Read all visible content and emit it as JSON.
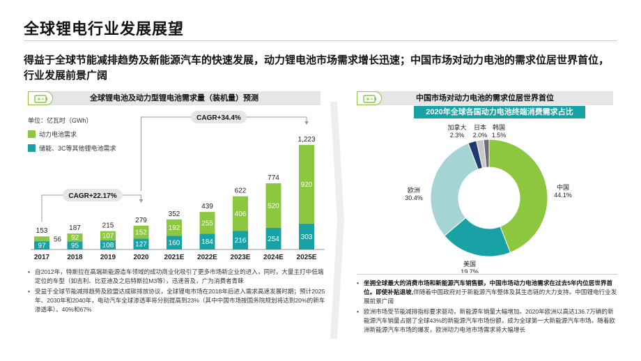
{
  "page": {
    "title": "全球锂电行业发展展望",
    "headline": "得益于全球节能减排趋势及新能源汽车的快速发展，动力锂电池市场需求增长迅速；中国市场对动力电池的需求位居世界首位，行业发展前景广阔"
  },
  "left_panel": {
    "title": "全球锂电池及动力型锂电池需求量（装机量）预测",
    "unit": "单位：亿瓦时（GWh）",
    "legend": [
      "动力电池需求",
      "储能、3C等其他锂电池需求"
    ],
    "bullets": [
      "自2012年，特斯拉在高端新能源造车领域的成功商业化吸引了更多市场新企业的进入，同时，大量主打中低端定位的车型（如吉利、比亚迪及之后特斯拉M3等），迅速普及，广为消费者青睐",
      "受益于全球节能减排趋势及欧盟达成碳排放协议，全球锂电市场在2018年后进入需求高速发展时期；预计2025年、2030年和2040年，电动汽车全球渗透率将分别提高到23%（其中中国市场按国务院规划将达到20%的新车渗透率）、40%和67%"
    ]
  },
  "right_panel": {
    "title": "中国市场对动力电池的需求位居世界首位",
    "subtitle": "2020年全球各国动力电池终端消费需求占比",
    "bullets": [
      {
        "bold": "坐拥全球最大的消费市场和新能源汽车销售额，中国市场动力电池需求在过去5年内位居世界首位。即使补贴退坡,",
        "text": "伴随着中国政府对于新能源汽车整体及其生态链的大力支持。中国锂电行业发展前景广阔"
      },
      {
        "bold": "",
        "text": "欧洲市场受节能减排指标要求驱动，新能源车销量大幅增加。2020年欧洲以高达136.7万辆的新能源汽车销量占据了全球43%的新能源汽车市场份额，成为全球第一大新能源汽车市场。随着欧洲新能源汽车市场的爆发，欧洲动力电池市场需求将大幅增长"
      }
    ]
  },
  "colors": {
    "green": "#8dc63f",
    "teal": "#19a2a5",
    "light_teal": "#a6d5d6",
    "navy": "#1f3a6e",
    "grey": "#c8c8c8",
    "dark_grey": "#6d6e71"
  },
  "chart_data": [
    {
      "type": "bar",
      "stacked": true,
      "categories": [
        "2017",
        "2018",
        "2019",
        "2020",
        "2021E",
        "2022E",
        "2023E",
        "2024E",
        "2025E"
      ],
      "series": [
        {
          "name": "储能、3C等其他锂电池需求",
          "values": [
            97,
            95,
            108,
            127,
            160,
            184,
            216,
            254,
            303
          ],
          "color": "#19a2a5"
        },
        {
          "name": "动力电池需求",
          "values": [
            56,
            92,
            107,
            152,
            192,
            255,
            406,
            520,
            920
          ],
          "color": "#8dc63f"
        }
      ],
      "totals": [
        153,
        187,
        215,
        279,
        352,
        439,
        622,
        774,
        1223
      ],
      "totals_labels": [
        "153",
        "187",
        "215",
        "279",
        "352",
        "439",
        "622",
        "774",
        "1,223"
      ],
      "annotations": [
        "CAGR+22.17%",
        "CAGR+34.4%"
      ],
      "ylabel": "单位：亿瓦时（GWh）",
      "legend_position": "top-left",
      "grid": false
    },
    {
      "type": "pie",
      "style": "donut",
      "title": "2020年全球各国动力电池终端消费需求占比",
      "slices": [
        {
          "label": "中国",
          "value": 44.1,
          "value_label": "44.1%",
          "color": "#8dc63f"
        },
        {
          "label": "美国",
          "value": 19.7,
          "value_label": "19.7%",
          "color": "#19a2a5"
        },
        {
          "label": "欧洲",
          "value": 30.4,
          "value_label": "30.4%",
          "color": "#a6d5d6"
        },
        {
          "label": "加拿大",
          "value": 2.3,
          "value_label": "2.3%",
          "color": "#1f3a6e"
        },
        {
          "label": "日本",
          "value": 2.0,
          "value_label": "2.0%",
          "color": "#c8c8c8"
        },
        {
          "label": "韩国",
          "value": 1.5,
          "value_label": "1.5%",
          "color": "#6d6e71"
        }
      ]
    }
  ]
}
